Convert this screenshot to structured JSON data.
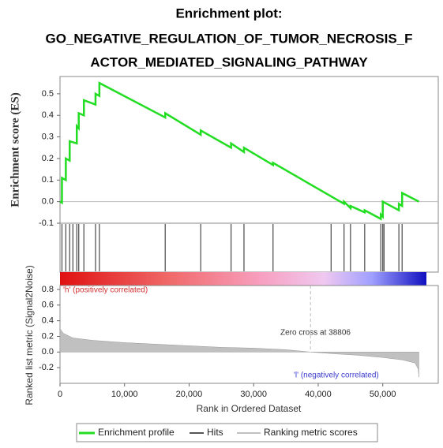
{
  "chart_data": [
    {
      "type": "line",
      "title": [
        "Enrichment plot:",
        "GO_NEGATIVE_REGULATION_OF_TUMOR_NECROSIS_F",
        "ACTOR_MEDIATED_SIGNALING_PATHWAY"
      ],
      "ylabel": "Enrichment score (ES)",
      "xlim": [
        0,
        58600
      ],
      "ylim": [
        -0.1,
        0.58
      ],
      "yticks": [
        -0.1,
        {
          "value": 0,
          "label": "0.0"
        },
        0.1,
        0.2,
        0.3,
        0.4,
        0.5
      ],
      "series": [
        {
          "name": "Enrichment profile",
          "color": "#22dd22",
          "x": [
            0,
            300,
            300,
            900,
            900,
            1500,
            1500,
            2600,
            2600,
            2900,
            2900,
            3700,
            3700,
            5500,
            5500,
            6100,
            6100,
            16300,
            16300,
            21800,
            21800,
            26500,
            26500,
            28500,
            28500,
            33000,
            33000,
            44000,
            44000,
            45000,
            45000,
            47200,
            47200,
            49700,
            49700,
            50000,
            50000,
            52500,
            52500,
            53000,
            53000,
            55600
          ],
          "values": [
            0,
            -0.005,
            0.11,
            0.1,
            0.2,
            0.19,
            0.28,
            0.27,
            0.35,
            0.34,
            0.41,
            0.4,
            0.47,
            0.45,
            0.5,
            0.49,
            0.55,
            0.39,
            0.41,
            0.31,
            0.33,
            0.25,
            0.27,
            0.23,
            0.25,
            0.17,
            0.18,
            -0.01,
            0,
            -0.03,
            -0.02,
            -0.05,
            -0.04,
            -0.08,
            -0.06,
            -0.07,
            0,
            -0.04,
            -0.01,
            -0.02,
            0.04,
            0
          ]
        }
      ]
    },
    {
      "type": "hits",
      "xlim": [
        0,
        58600
      ],
      "series": [
        {
          "name": "Hits",
          "color": "#555555",
          "x": [
            300,
            900,
            1500,
            2000,
            2600,
            2900,
            3700,
            5500,
            6100,
            16300,
            21800,
            26500,
            28500,
            33000,
            42000,
            44000,
            45000,
            47200,
            49700,
            50000,
            50200,
            52500,
            53000
          ]
        }
      ]
    },
    {
      "type": "area",
      "ylabel": "Ranked list metric (Signal2Noise)",
      "xlabel": "Rank in Ordered Dataset",
      "xlim": [
        0,
        58600
      ],
      "ylim": [
        -0.4,
        0.85
      ],
      "yticks": [
        -0.2,
        {
          "value": 0,
          "label": "0.0"
        },
        0.2,
        0.4,
        0.6,
        0.8
      ],
      "xticks": [
        0,
        {
          "value": 10000,
          "label": "10,000"
        },
        {
          "value": 20000,
          "label": "20,000"
        },
        {
          "value": 30000,
          "label": "30,000"
        },
        {
          "value": 40000,
          "label": "40,000"
        },
        {
          "value": 50000,
          "label": "50,000"
        }
      ],
      "zero_cross": 38806,
      "annotations": [
        "'h' (positively correlated)",
        "Zero cross at 38806",
        "'l' (negatively correlated)"
      ],
      "series": [
        {
          "name": "Ranking metric scores",
          "color": "#c0c0c0",
          "x": [
            0,
            500,
            2000,
            5000,
            10000,
            15000,
            20000,
            25000,
            30000,
            35000,
            38806,
            42000,
            46000,
            50000,
            53000,
            55000,
            55500,
            55600
          ],
          "values": [
            0.3,
            0.24,
            0.18,
            0.15,
            0.12,
            0.1,
            0.08,
            0.06,
            0.05,
            0.03,
            0,
            -0.02,
            -0.04,
            -0.07,
            -0.1,
            -0.14,
            -0.22,
            -0.32
          ]
        }
      ]
    }
  ]
}
